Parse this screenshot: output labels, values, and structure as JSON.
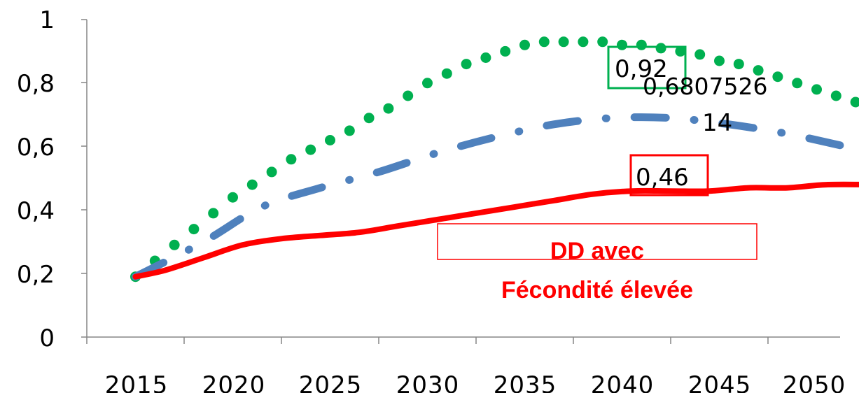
{
  "chart_data": {
    "type": "line",
    "title": "",
    "xlabel": "",
    "ylabel": "",
    "xlim": [
      2010,
      2052
    ],
    "ylim": [
      0,
      1
    ],
    "y_ticks": [
      "0",
      "0,2",
      "0,4",
      "0,6",
      "0,8",
      "1"
    ],
    "x_ticks": [
      "2015",
      "2020",
      "2025",
      "2030",
      "2035",
      "2040",
      "2045",
      "2050"
    ],
    "grid": false,
    "legend": "none",
    "series": [
      {
        "color": "#00b050",
        "style": "dotted",
        "x": [
          2012.5,
          2013.5,
          2014.5,
          2015.5,
          2016.5,
          2017.5,
          2018.5,
          2019.5,
          2020.5,
          2021.5,
          2022.5,
          2023.5,
          2024.5,
          2025.5,
          2026.5,
          2027.5,
          2028.5,
          2029.5,
          2030.5,
          2031.5,
          2032.5,
          2033.5,
          2034.5,
          2035.5,
          2036.5,
          2037.5,
          2038.5,
          2039.5,
          2040.5,
          2041.5,
          2042.5,
          2043.5,
          2044.5,
          2045.5,
          2046.5,
          2047.5,
          2048.5,
          2049.5,
          2050.5
        ],
        "values": [
          0.19,
          0.24,
          0.29,
          0.34,
          0.39,
          0.44,
          0.48,
          0.52,
          0.56,
          0.59,
          0.62,
          0.65,
          0.69,
          0.72,
          0.76,
          0.8,
          0.83,
          0.86,
          0.88,
          0.9,
          0.92,
          0.93,
          0.93,
          0.93,
          0.93,
          0.92,
          0.92,
          0.91,
          0.9,
          0.89,
          0.87,
          0.86,
          0.84,
          0.82,
          0.8,
          0.78,
          0.76,
          0.74,
          0.71
        ]
      },
      {
        "color": "#4f81bd",
        "style": "dash-dot",
        "x": [
          2012.5,
          2016,
          2019,
          2022,
          2025,
          2028,
          2031,
          2034,
          2037,
          2040,
          2043,
          2046,
          2049
        ],
        "values": [
          0.19,
          0.3,
          0.41,
          0.47,
          0.52,
          0.58,
          0.63,
          0.67,
          0.69,
          0.69,
          0.67,
          0.64,
          0.6
        ]
      },
      {
        "color": "#ff0000",
        "style": "solid",
        "x": [
          2012.5,
          2014,
          2016,
          2018,
          2020,
          2022,
          2024,
          2026,
          2028,
          2030,
          2032,
          2034,
          2036,
          2038,
          2040,
          2042,
          2044,
          2046,
          2048,
          2050.5
        ],
        "values": [
          0.19,
          0.21,
          0.25,
          0.29,
          0.31,
          0.32,
          0.33,
          0.35,
          0.37,
          0.39,
          0.41,
          0.43,
          0.45,
          0.46,
          0.46,
          0.46,
          0.47,
          0.47,
          0.48,
          0.48
        ]
      }
    ],
    "annotations": [
      {
        "text": "0,92",
        "color": "#00b050",
        "boxed": true
      },
      {
        "text": "0,6807526",
        "color": "",
        "boxed": false
      },
      {
        "text": "14",
        "color": "",
        "boxed": false
      },
      {
        "text": "0,46",
        "color": "#ff0000",
        "boxed": true
      }
    ],
    "callout": {
      "lines": [
        "DD avec",
        "Fécondité élevée"
      ],
      "color": "#ff0000"
    }
  }
}
